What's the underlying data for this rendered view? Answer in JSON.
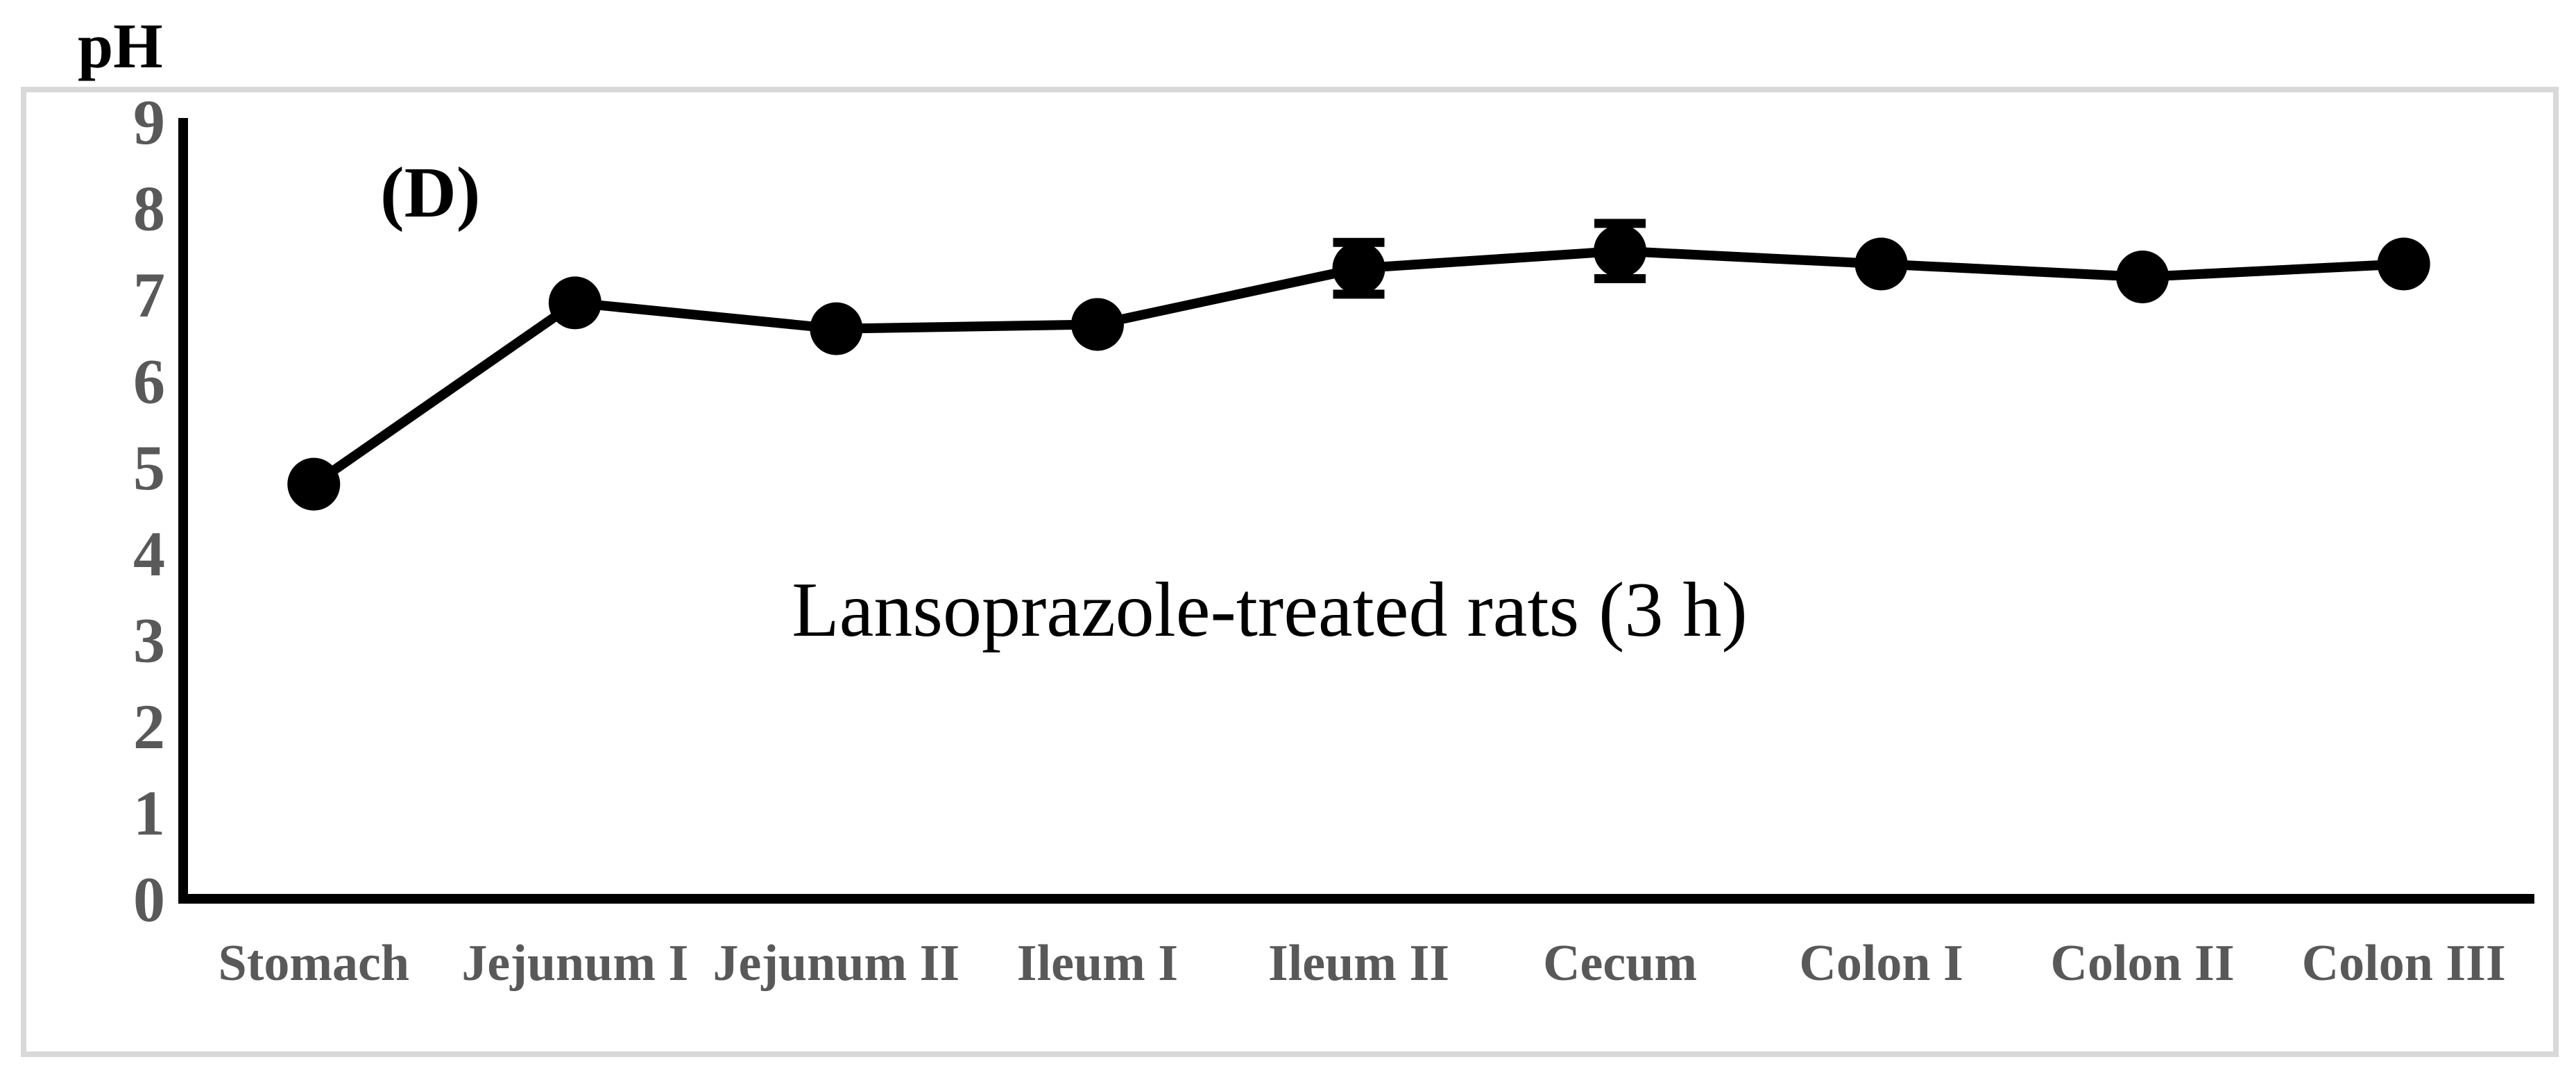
{
  "figure": {
    "panel_label": "(D)",
    "y_axis_title": "pH",
    "title": "Lansoprazole-treated rats (3 h)"
  },
  "chart_data": {
    "type": "line",
    "title": "Lansoprazole-treated rats (3 h)",
    "panel_label": "(D)",
    "ylabel": "pH",
    "xlabel": "",
    "ylim": [
      0,
      9
    ],
    "y_ticks": [
      0,
      1,
      2,
      3,
      4,
      5,
      6,
      7,
      8,
      9
    ],
    "grid": false,
    "legend_position": "none",
    "categories": [
      "Stomach",
      "Jejunum I",
      "Jejunum II",
      "Ileum I",
      "Ileum II",
      "Cecum",
      "Colon I",
      "Colon II",
      "Colon III"
    ],
    "series": [
      {
        "name": "Lansoprazole-treated rats (3 h)",
        "marker": "filled-circle",
        "values": [
          4.8,
          6.9,
          6.6,
          6.65,
          7.3,
          7.5,
          7.35,
          7.2,
          7.35
        ],
        "errors": [
          0,
          0,
          0,
          0,
          0.3,
          0.32,
          0,
          0,
          0
        ]
      }
    ],
    "colors": {
      "series_line": "#000000",
      "marker_fill": "#000000",
      "tick_label": "#595959",
      "category_label": "#595959",
      "figure_border": "#d9d9d9",
      "axis_line": "#000000",
      "title_text": "#000000"
    }
  }
}
